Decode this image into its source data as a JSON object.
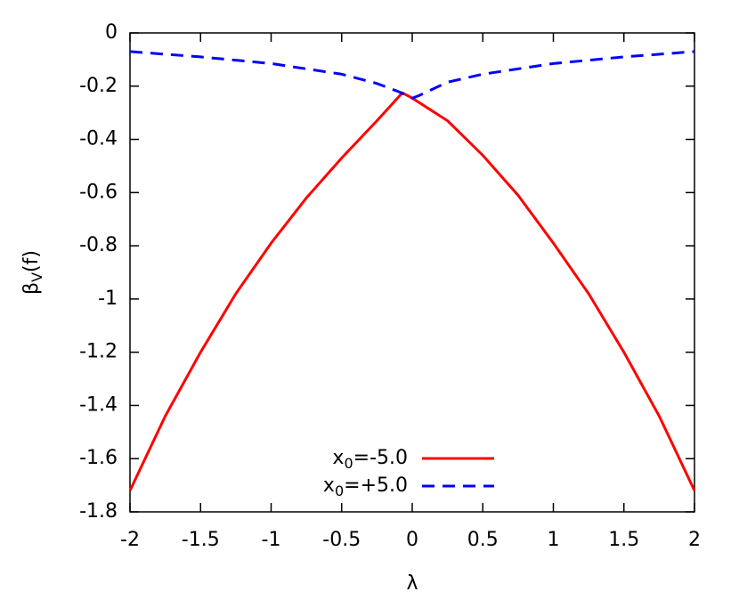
{
  "chart_data": {
    "type": "line",
    "x_label": "λ",
    "y_label": [
      "β",
      "V",
      "(f)"
    ],
    "xlim": [
      -2,
      2
    ],
    "xticks": [
      -2,
      -1.5,
      -1,
      -0.5,
      0,
      0.5,
      1,
      1.5,
      2
    ],
    "ylim": [
      -1.8,
      0
    ],
    "yticks": [
      0,
      -0.2,
      -0.4,
      -0.6,
      -0.8,
      -1,
      -1.2,
      -1.4,
      -1.6,
      -1.8
    ],
    "legend": "bottom",
    "series": [
      {
        "name": [
          "x",
          "0",
          "=-5.0"
        ],
        "color": "#ff0000",
        "dash": false,
        "x": [
          -2,
          -1.75,
          -1.5,
          -1.25,
          -1,
          -0.75,
          -0.5,
          -0.25,
          -0.07,
          0,
          0.25,
          0.5,
          0.75,
          1,
          1.25,
          1.5,
          1.75,
          2
        ],
        "values": [
          -1.72,
          -1.44,
          -1.2,
          -0.98,
          -0.79,
          -0.62,
          -0.47,
          -0.33,
          -0.225,
          -0.245,
          -0.33,
          -0.46,
          -0.61,
          -0.79,
          -0.98,
          -1.2,
          -1.44,
          -1.72
        ]
      },
      {
        "name": [
          "x",
          "0",
          "=+5.0"
        ],
        "color": "#0000ff",
        "dash": true,
        "x": [
          -2,
          -1.5,
          -1,
          -0.5,
          -0.25,
          -0.1,
          0,
          0.05,
          0.25,
          0.5,
          1,
          1.5,
          2
        ],
        "values": [
          -0.07,
          -0.09,
          -0.115,
          -0.155,
          -0.19,
          -0.22,
          -0.245,
          -0.235,
          -0.185,
          -0.155,
          -0.115,
          -0.09,
          -0.07
        ]
      }
    ]
  }
}
